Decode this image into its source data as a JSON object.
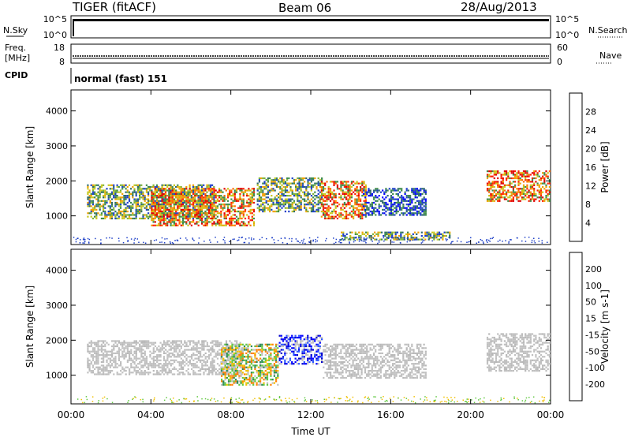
{
  "header": {
    "radar": "TIGER (fitACF)",
    "beam": "Beam 06",
    "date": "28/Aug/2013"
  },
  "panels": {
    "nsky": {
      "label": "N.Sky",
      "left_ticks": [
        "10^5",
        "10^0"
      ]
    },
    "nsearch": {
      "label": "N.Search",
      "right_ticks": [
        "10^5",
        "10^0"
      ]
    },
    "freq": {
      "label": "Freq.",
      "unit": "[MHz]",
      "left_ticks": [
        "18",
        "8"
      ]
    },
    "nave": {
      "label": "Nave",
      "right_ticks": [
        "60",
        "0"
      ]
    },
    "cpid": {
      "label": "CPID",
      "mode": "normal (fast) 151"
    }
  },
  "chart_data": [
    {
      "type": "heatmap",
      "name": "power",
      "ylabel": "Slant Range [km]",
      "xlabel": "",
      "yticks": [
        "4000",
        "3000",
        "2000",
        "1000"
      ],
      "ylim": [
        180,
        4600
      ],
      "xlim_hours": [
        0,
        24
      ],
      "colorbar": {
        "label": "Power [dB]",
        "ticks": [
          "28",
          "24",
          "20",
          "16",
          "12",
          "8",
          "4"
        ],
        "colors": [
          "#0000ff",
          "#1e40c8",
          "#2f6b6b",
          "#3f8c4a",
          "#7fb43a",
          "#c8c81e",
          "#f0a000",
          "#ff6a00",
          "#ff2000",
          "#e00000"
        ]
      },
      "echo_regions": [
        {
          "t0": 0.8,
          "t1": 7.2,
          "r0": 900,
          "r1": 1900,
          "level": "medium"
        },
        {
          "t0": 4.0,
          "t1": 9.2,
          "r0": 700,
          "r1": 1800,
          "level": "high"
        },
        {
          "t0": 9.3,
          "t1": 12.6,
          "r0": 1100,
          "r1": 2100,
          "level": "medium"
        },
        {
          "t0": 12.5,
          "t1": 14.8,
          "r0": 900,
          "r1": 2000,
          "level": "high"
        },
        {
          "t0": 14.6,
          "t1": 17.8,
          "r0": 1000,
          "r1": 1800,
          "level": "low"
        },
        {
          "t0": 20.8,
          "t1": 24.0,
          "r0": 1400,
          "r1": 2300,
          "level": "high"
        },
        {
          "t0": 13.5,
          "t1": 19.0,
          "r0": 300,
          "r1": 550,
          "level": "medium"
        }
      ]
    },
    {
      "type": "heatmap",
      "name": "velocity",
      "ylabel": "Slant Range [km]",
      "xlabel": "Time UT",
      "yticks": [
        "4000",
        "3000",
        "2000",
        "1000"
      ],
      "xticks": [
        "00:00",
        "04:00",
        "08:00",
        "12:00",
        "16:00",
        "20:00",
        "00:00"
      ],
      "ylim": [
        180,
        4600
      ],
      "xlim_hours": [
        0,
        24
      ],
      "colorbar": {
        "label": "Velocity [m s-1]",
        "ticks": [
          "200",
          "100",
          "50",
          "15",
          "-15",
          "-50",
          "-100",
          "-200"
        ],
        "colors": [
          "#0000ff",
          "#2f57ff",
          "#2e8b57",
          "#60c840",
          "#c0c0c0",
          "#f0c000",
          "#ff8000",
          "#ff4000",
          "#ff0000"
        ]
      },
      "echo_regions": [
        {
          "t0": 0.8,
          "t1": 8.6,
          "r0": 1000,
          "r1": 2000,
          "level": "ground"
        },
        {
          "t0": 7.5,
          "t1": 10.4,
          "r0": 700,
          "r1": 1900,
          "level": "green"
        },
        {
          "t0": 10.4,
          "t1": 12.6,
          "r0": 1300,
          "r1": 2150,
          "level": "blue"
        },
        {
          "t0": 12.6,
          "t1": 17.8,
          "r0": 900,
          "r1": 1900,
          "level": "ground"
        },
        {
          "t0": 20.8,
          "t1": 24.0,
          "r0": 1100,
          "r1": 2200,
          "level": "ground"
        }
      ]
    }
  ]
}
